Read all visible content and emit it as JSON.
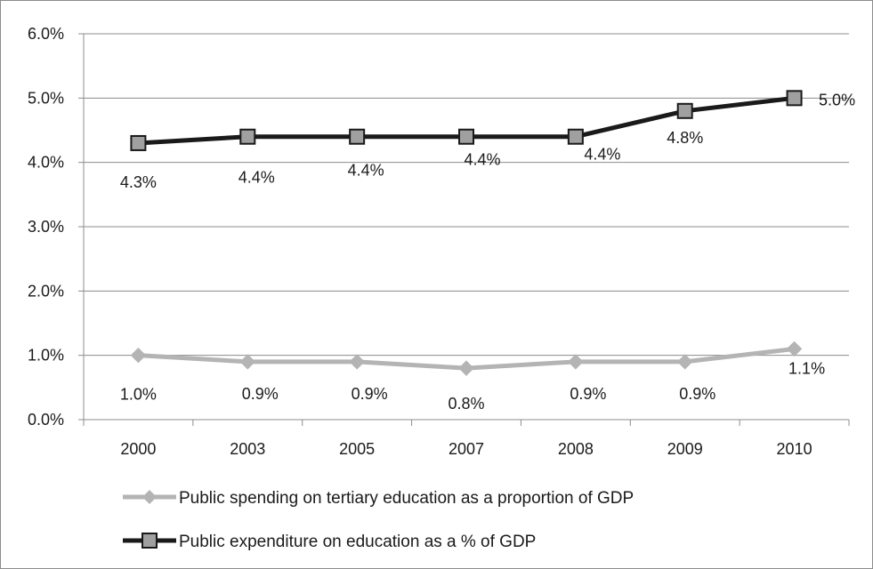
{
  "chart_data": {
    "type": "line",
    "categories": [
      "2000",
      "2003",
      "2005",
      "2007",
      "2008",
      "2009",
      "2010"
    ],
    "ylim": [
      0,
      6
    ],
    "yticks": [
      0,
      1,
      2,
      3,
      4,
      5,
      6
    ],
    "ytick_labels": [
      "0.0%",
      "1.0%",
      "2.0%",
      "3.0%",
      "4.0%",
      "5.0%",
      "6.0%"
    ],
    "grid": true,
    "legend_position": "bottom-left",
    "series": [
      {
        "name": "Public spending on tertiary education as a proportion of GDP",
        "values": [
          1.0,
          0.9,
          0.9,
          0.8,
          0.9,
          0.9,
          1.1
        ],
        "labels": [
          "1.0%",
          "0.9%",
          "0.9%",
          "0.8%",
          "0.9%",
          "0.9%",
          "1.1%"
        ],
        "color": "#b4b4b4",
        "marker": "diamond"
      },
      {
        "name": "Public expenditure on education as a % of GDP",
        "values": [
          4.3,
          4.4,
          4.4,
          4.4,
          4.4,
          4.8,
          5.0
        ],
        "labels": [
          "4.3%",
          "4.4%",
          "4.4%",
          "4.4%",
          "4.4%",
          "4.8%",
          "5.0%"
        ],
        "color": "#1a1a1a",
        "marker_fill": "#a0a0a0",
        "marker": "square"
      }
    ]
  }
}
